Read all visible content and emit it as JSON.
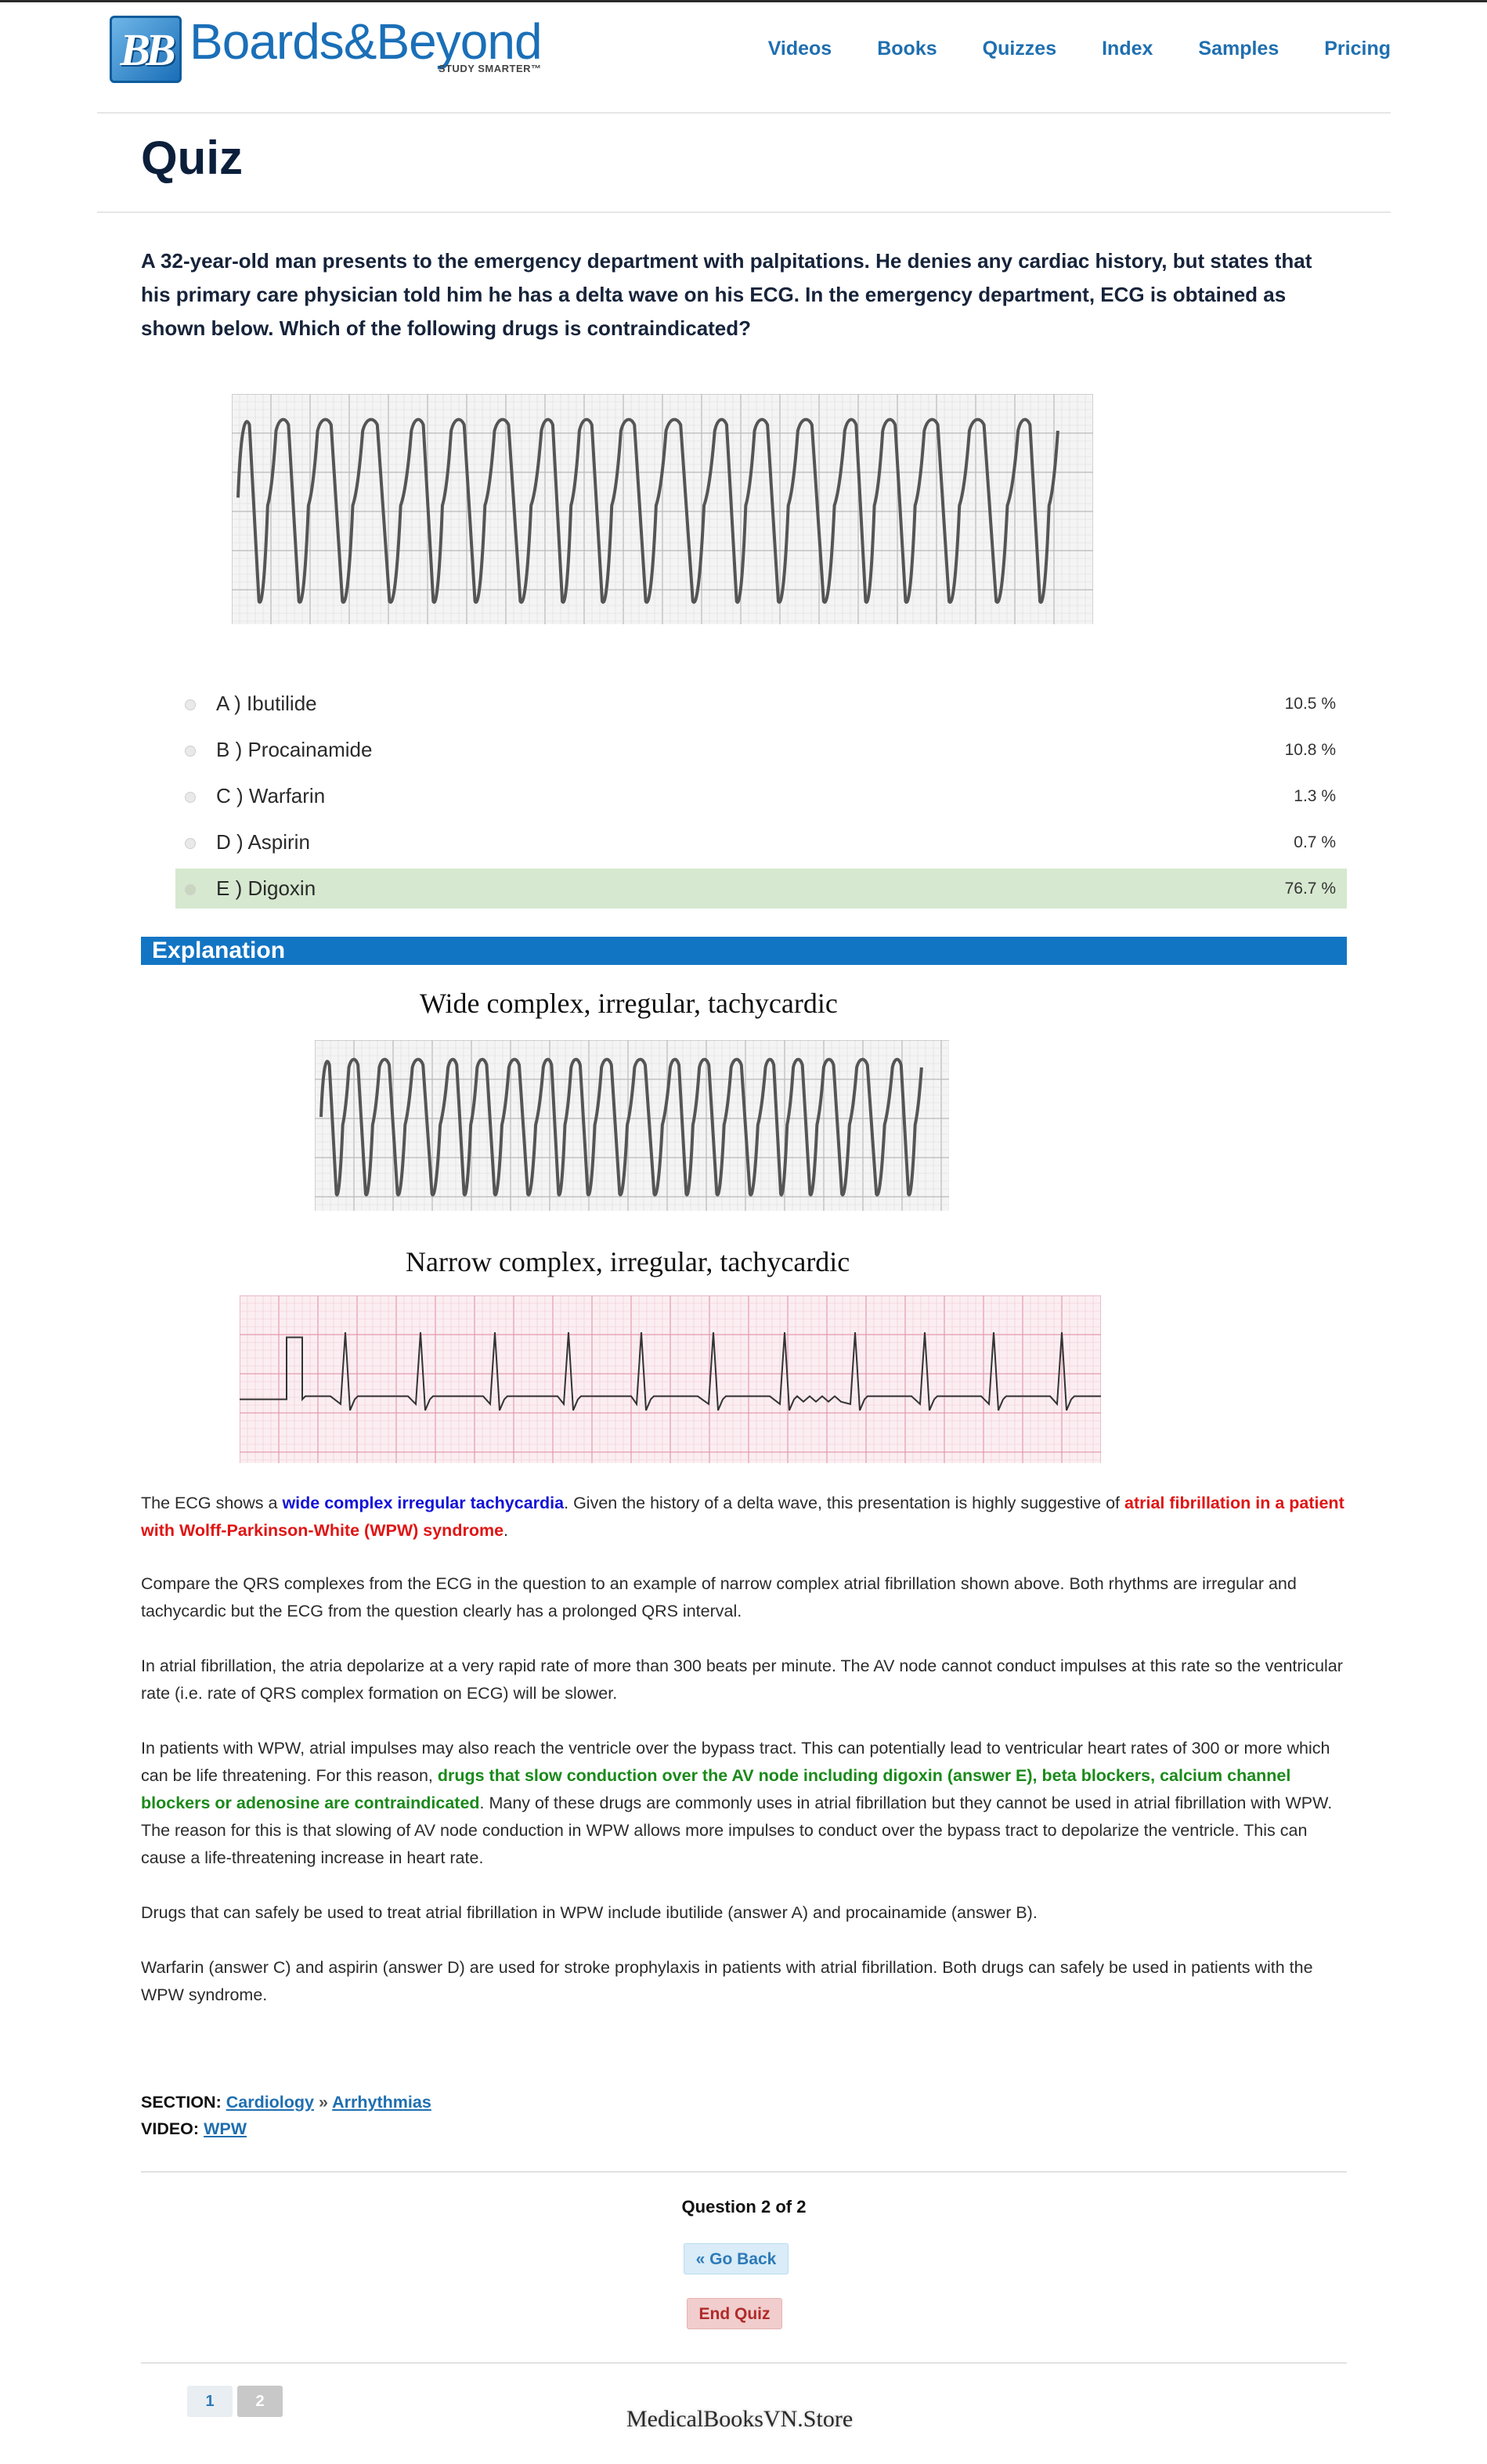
{
  "header": {
    "logo_name": "Boards&Beyond",
    "logo_badge": "BB",
    "logo_tagline": "STUDY SMARTER™",
    "nav": [
      "Videos",
      "Books",
      "Quizzes",
      "Index",
      "Samples",
      "Pricing"
    ]
  },
  "page": {
    "title": "Quiz"
  },
  "question": {
    "text": "A 32-year-old man presents to the emergency department with palpitations. He denies any cardiac history, but states that his primary care physician told him he has a delta wave on his ECG. In the emergency department, ECG is obtained as shown below. Which of the following drugs is contraindicated?"
  },
  "answers": [
    {
      "label": "A ) Ibutilide",
      "percent": "10.5 %",
      "selected": false
    },
    {
      "label": "B ) Procainamide",
      "percent": "10.8 %",
      "selected": false
    },
    {
      "label": "C ) Warfarin",
      "percent": "1.3 %",
      "selected": false
    },
    {
      "label": "D ) Aspirin",
      "percent": "0.7 %",
      "selected": false
    },
    {
      "label": "E ) Digoxin",
      "percent": "76.7 %",
      "selected": true
    }
  ],
  "explanation": {
    "heading": "Explanation",
    "caption_wide": "Wide complex, irregular, tachycardic",
    "caption_narrow": "Narrow complex, irregular, tachycardic",
    "p1": {
      "a": "The ECG shows a ",
      "b": "wide complex irregular tachycardia",
      "c": ". Given the history of a delta wave, this presentation is highly suggestive of ",
      "d": "atrial fibrillation in a patient with Wolff-Parkinson-White (WPW) syndrome",
      "e": "."
    },
    "p2": "Compare the QRS complexes from the ECG in the question to an example of narrow complex atrial fibrillation shown above. Both rhythms are irregular and tachycardic but the ECG from the question clearly has a prolonged QRS interval.",
    "p3": "In atrial fibrillation, the atria depolarize at a very rapid rate of more than 300 beats per minute. The AV node cannot conduct impulses at this rate so the ventricular rate (i.e. rate of QRS complex formation on ECG) will be slower.",
    "p4": {
      "a": "In patients with WPW, atrial impulses may also reach the ventricle over the bypass tract. This can potentially lead to ventricular heart rates of 300 or more which can be life threatening. For this reason, ",
      "b": "drugs that slow conduction over the AV node including digoxin (answer E), beta blockers, calcium channel blockers or adenosine are contraindicated",
      "c": ". Many of these drugs are commonly uses in atrial fibrillation but they cannot be used in atrial fibrillation with WPW. The reason for this is that slowing of AV node conduction in WPW allows more impulses to conduct over the bypass tract to depolarize the ventricle. This can cause a life-threatening increase in heart rate."
    },
    "p5": "Drugs that can safely be used to treat atrial fibrillation in WPW include ibutilide (answer A) and procainamide (answer B).",
    "p6": "Warfarin (answer C) and aspirin (answer D) are used for stroke prophylaxis in patients with atrial fibrillation. Both drugs can safely be used in patients with the WPW syndrome."
  },
  "meta": {
    "section_label": "SECTION:",
    "section_link": "Cardiology",
    "section_sep": "»",
    "subsection_link": "Arrhythmias",
    "video_label": "VIDEO:",
    "video_link": "WPW"
  },
  "footer": {
    "question_count": "Question 2 of 2",
    "back_button": "« Go Back",
    "end_button": "End Quiz",
    "pages": [
      "1",
      "2"
    ],
    "watermark": "MedicalBooksVN.Store"
  },
  "colors": {
    "brand_blue": "#1f6fb0",
    "explanation_bar": "#1275c4",
    "selected_answer": "#d6e8cf",
    "highlight_blue": "#1212d8",
    "highlight_red": "#e01515",
    "highlight_green": "#1a8a1a"
  }
}
